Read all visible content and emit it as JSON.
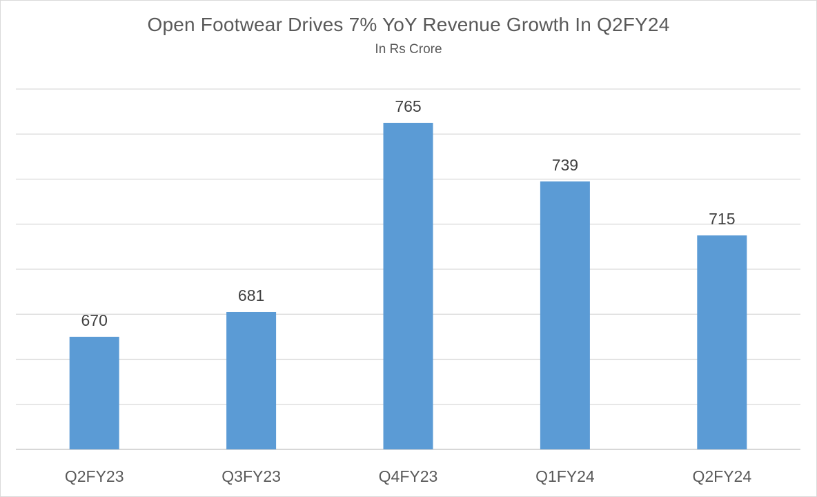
{
  "chart_data": {
    "type": "bar",
    "title": "Open Footwear Drives 7% YoY Revenue Growth In Q2FY24",
    "subtitle": "In Rs Crore",
    "categories": [
      "Q2FY23",
      "Q3FY23",
      "Q4FY23",
      "Q1FY24",
      "Q2FY24"
    ],
    "values": [
      670,
      681,
      765,
      739,
      715
    ],
    "data_labels": [
      "670",
      "681",
      "765",
      "739",
      "715"
    ],
    "ylim": [
      620,
      780
    ],
    "grid": true,
    "y_tick_labels_visible": false,
    "legend": "none",
    "colors": {
      "bar": "#5b9bd5",
      "gridline": "#d9d9d9",
      "text": "#595959"
    }
  }
}
